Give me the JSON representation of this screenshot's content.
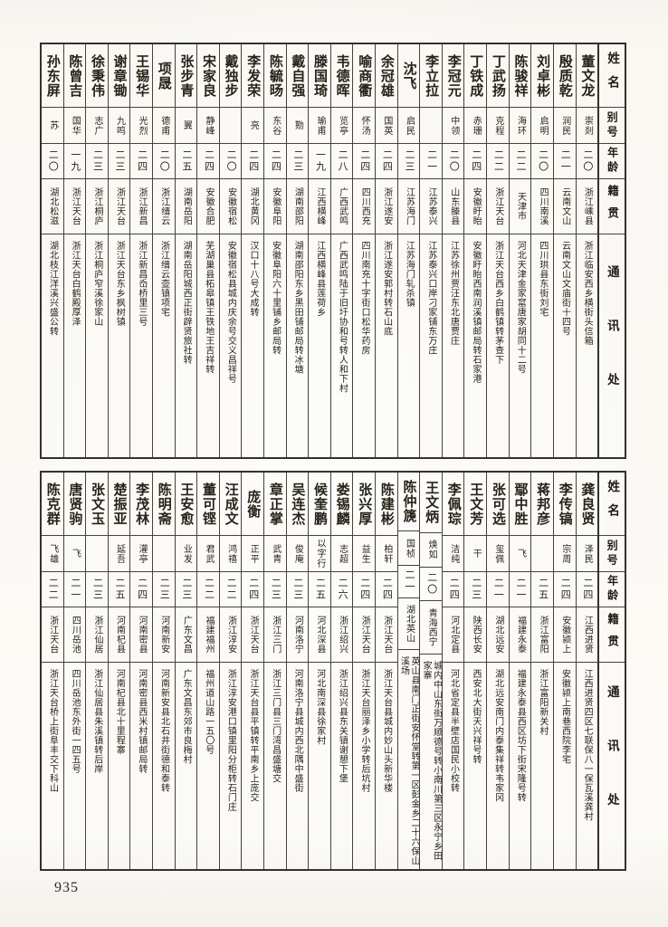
{
  "page": {
    "number": "935"
  },
  "headers": {
    "name": "姓名",
    "alias": "别号",
    "age": "年龄",
    "native": "籍贯",
    "address": "通讯处"
  },
  "column_order": "right-to-left",
  "bands": [
    {
      "entries": [
        {
          "name": "董文龙",
          "alias": "崇剡",
          "age": "二〇",
          "native": "浙江嵊县",
          "address": "浙江临安西乡横街头信箱"
        },
        {
          "name": "殷质乾",
          "alias": "润民",
          "age": "二一",
          "native": "云南文山",
          "address": "云南文山文庙街十四号"
        },
        {
          "name": "刘卓彬",
          "alias": "启明",
          "age": "二〇",
          "native": "四川南溪",
          "address": "四川珙县东街刘宅"
        },
        {
          "name": "陈骏祥",
          "alias": "海环",
          "age": "二二",
          "native": "天津市",
          "address": "河北天津金家窰唐家胡同十二号"
        },
        {
          "name": "丁武扬",
          "alias": "克程",
          "age": "二二",
          "native": "浙江天台",
          "address": "浙江天台西乡白鹤镇转茅查下"
        },
        {
          "name": "丁铁成",
          "alias": "赤珊",
          "age": "二四",
          "native": "安徽盱眙",
          "address": "安徽盱眙西南润溪镇邮局转石家港"
        },
        {
          "name": "李冠元",
          "alias": "中领",
          "age": "二〇",
          "native": "山东滕县",
          "address": "江苏徐州贾汪东北唐贾庄"
        },
        {
          "name": "李立拉",
          "alias": "",
          "age": "二一",
          "native": "江苏泰兴",
          "address": "江苏泰兴口岸刁家铺东万庄"
        },
        {
          "name": "沈飞",
          "alias": "启民",
          "age": "二三",
          "native": "江苏海门",
          "address": "江苏海门轧杀镇"
        },
        {
          "name": "余冠雄",
          "alias": "国英",
          "age": "二四",
          "native": "浙江遂安",
          "address": "浙江遂安郭村转石山底"
        },
        {
          "name": "喻商衢",
          "alias": "怀汤",
          "age": "二四",
          "native": "四川西充",
          "address": "四川南充十字街口松华药房"
        },
        {
          "name": "韦德晖",
          "alias": "览亭",
          "age": "二八",
          "native": "广西武鸣",
          "address": "广西武鸣陆于旧圩协和号转人和下村"
        },
        {
          "name": "滕国琦",
          "alias": "瑜甫",
          "age": "一九",
          "native": "江西横峰",
          "address": "江西横峰县莲荷乡"
        },
        {
          "name": "戴自强",
          "alias": "勚",
          "age": "二三",
          "native": "湖南邵阳",
          "address": "湖南邵阳东乡黑田铺邮局转冰塘"
        },
        {
          "name": "陈毓旸",
          "alias": "东谷",
          "age": "二四",
          "native": "安徽阜阳",
          "address": "安徽阜阳六十里铺乡邮局转"
        },
        {
          "name": "李发荣",
          "alias": "亮",
          "age": "二四",
          "native": "湖北黄冈",
          "address": "汉口十八号大成转"
        },
        {
          "name": "戴独步",
          "alias": "",
          "age": "二〇",
          "native": "安徽宿松",
          "address": "安徽宿松县城内庆余号交义昌祥号"
        },
        {
          "name": "宋家良",
          "alias": "静峰",
          "age": "二四",
          "native": "安徽合肥",
          "address": "芜湖巢县柘皋镇王铁地王吉祥转"
        },
        {
          "name": "张步青",
          "alias": "翼",
          "age": "二五",
          "native": "湖南岳阳",
          "address": "湖南岳阳城西正街辟贤旅社转"
        },
        {
          "name": "项晟",
          "alias": "德甫",
          "age": "二〇",
          "native": "浙江缙云",
          "address": "浙江缙云壶镇项宅"
        },
        {
          "name": "王锡华",
          "alias": "光烈",
          "age": "二四",
          "native": "浙江新昌",
          "address": "浙江新昌岙桥里三号"
        },
        {
          "name": "谢章锄",
          "alias": "九鸣",
          "age": "二三",
          "native": "浙江天台",
          "address": "浙江天台东乡枫树镇"
        },
        {
          "name": "徐秉伟",
          "alias": "志广",
          "age": "二三",
          "native": "浙江桐庐",
          "address": "浙江桐庐窄溪徐家山"
        },
        {
          "name": "陈曾吉",
          "alias": "国华",
          "age": "一九",
          "native": "浙江天台",
          "address": "浙江天台白鹤殿厚泽"
        },
        {
          "name": "孙东屏",
          "alias": "苏",
          "age": "二〇",
          "native": "湖北松滋",
          "address": "湖北枝江洋溪兴盛公转"
        }
      ]
    },
    {
      "entries": [
        {
          "name": "龚良贤",
          "alias": "泽民",
          "age": "二四",
          "native": "江西进贤",
          "address": "江西进贤四区七联保八一保瓦溪龚村"
        },
        {
          "name": "李传镐",
          "alias": "宗周",
          "age": "二四",
          "native": "安徽颍上",
          "address": "安徽颍上南巷西院李宅"
        },
        {
          "name": "蒋邦彦",
          "alias": "",
          "age": "二五",
          "native": "浙江富阳",
          "address": "浙江富阳新关村"
        },
        {
          "name": "鄢中胜",
          "alias": "飞",
          "age": "二一",
          "native": "福建永泰",
          "address": "福建永泰县西区坊下街宋隆号转"
        },
        {
          "name": "张可选",
          "alias": "玺佩",
          "age": "二一",
          "native": "湖北远安",
          "address": "湖北远安南门内泰集祥转韦家冈"
        },
        {
          "name": "王文芳",
          "alias": "干",
          "age": "二三",
          "native": "陕西长安",
          "address": "西安北大街天兴祥号转"
        },
        {
          "name": "李佩琮",
          "alias": "洁纯",
          "age": "二四",
          "native": "河北定县",
          "address": "河北省定县半壁店国民小校转"
        },
        {
          "name": "王文炳",
          "alias": "焕如",
          "age": "二〇",
          "native": "青海西宁",
          "address": "城内中山东街万顺德号转小南川第三区永宁乡田家寨"
        },
        {
          "name": "陈仲篪",
          "alias": "国桢",
          "age": "二一",
          "native": "湖北英山",
          "address": "英山县南门正街安怀堂转第一区彭金乡二十六保山溪场"
        },
        {
          "name": "陈建彬",
          "alias": "柏轩",
          "age": "二四",
          "native": "浙江天台",
          "address": "浙江天台县城内妙山头新华楼"
        },
        {
          "name": "张兴厚",
          "alias": "益生",
          "age": "二四",
          "native": "浙江天台",
          "address": "浙江天台丽泽乡小学转后坑村"
        },
        {
          "name": "娄锡麟",
          "alias": "志超",
          "age": "二六",
          "native": "浙江绍兴",
          "address": "浙江绍兴县东关镇谢憩下堡"
        },
        {
          "name": "候奎鹏",
          "alias": "以字行",
          "age": "二五",
          "native": "河北深县",
          "address": "河北南深县徐家村"
        },
        {
          "name": "吴连杰",
          "alias": "俊庵",
          "age": "二三",
          "native": "河南洛宁",
          "address": "河南洛宁县城内西北隅中盛街"
        },
        {
          "name": "章正掌",
          "alias": "武青",
          "age": "二三",
          "native": "浙江三门",
          "address": "浙江三门县三门湾昌盛塘交"
        },
        {
          "name": "庞衡",
          "alias": "正平",
          "age": "二四",
          "native": "浙江天台",
          "address": "浙江天台县平镇转平南乡上庞交"
        },
        {
          "name": "汪成文",
          "alias": "鸿禧",
          "age": "二二",
          "native": "浙江淳安",
          "address": "浙江淳安港口镇里阳分柜转石门庄"
        },
        {
          "name": "董可铿",
          "alias": "君武",
          "age": "二二",
          "native": "福建福州",
          "address": "福州道山路一五〇号"
        },
        {
          "name": "王安愈",
          "alias": "业发",
          "age": "二三",
          "native": "广东文昌",
          "address": "广东文昌东郊市良梅村"
        },
        {
          "name": "陈明斋",
          "alias": "",
          "age": "二三",
          "native": "河南新安",
          "address": "河南新安县北石井街德和泰转"
        },
        {
          "name": "李茂林",
          "alias": "灌亭",
          "age": "二四",
          "native": "河南密县",
          "address": "河南密县西米村镇邮局转"
        },
        {
          "name": "楚振亚",
          "alias": "延吾",
          "age": "二五",
          "native": "河南杞县",
          "address": "河南杞县北十里程寨"
        },
        {
          "name": "张文玉",
          "alias": "",
          "age": "二三",
          "native": "浙江仙居",
          "address": "浙江仙居县朱溪镇转后岸"
        },
        {
          "name": "唐贤驹",
          "alias": "飞",
          "age": "二一",
          "native": "四川岳池",
          "address": "四川岳池东外街一四五号"
        },
        {
          "name": "陈克群",
          "alias": "飞雄",
          "age": "二二",
          "native": "浙江天台",
          "address": "浙江天台桥上街阜丰交下科山"
        }
      ]
    }
  ]
}
